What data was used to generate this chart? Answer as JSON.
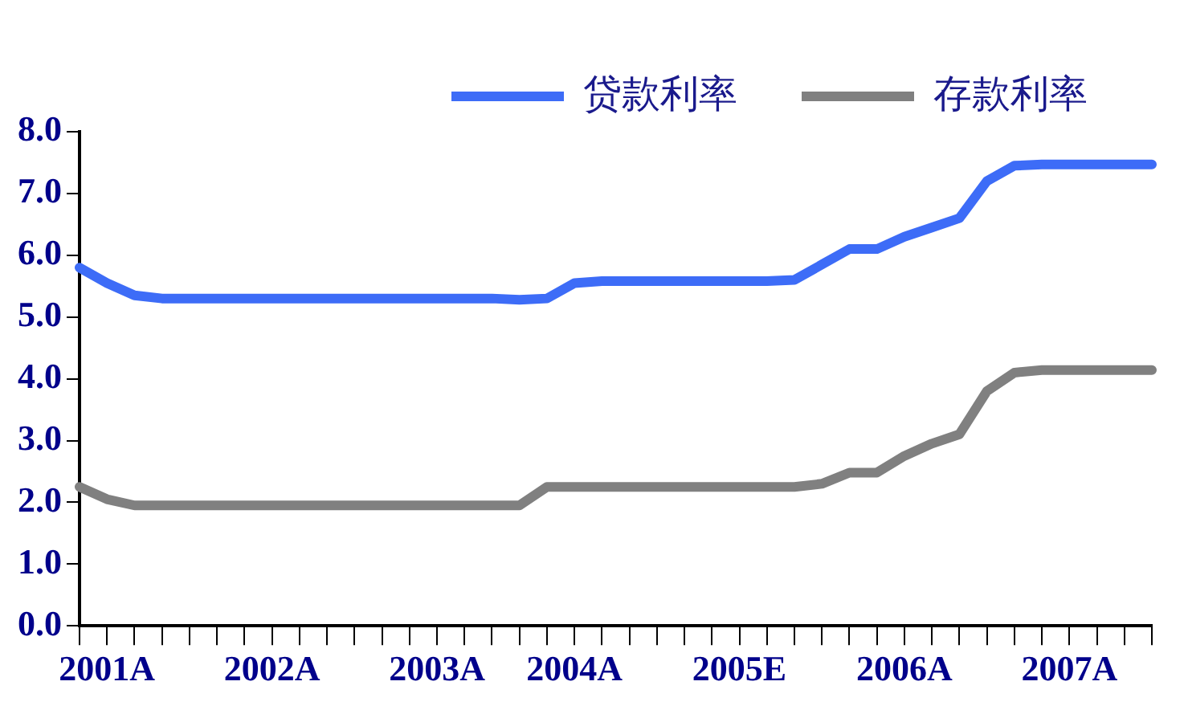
{
  "chart_data": {
    "type": "line",
    "categories": [
      null,
      "2001A",
      null,
      null,
      null,
      null,
      null,
      "2002A",
      null,
      null,
      null,
      null,
      null,
      "2003A",
      null,
      null,
      null,
      null,
      "2004A",
      null,
      null,
      null,
      null,
      null,
      "2005E",
      null,
      null,
      null,
      null,
      null,
      "2006A",
      null,
      null,
      null,
      null,
      null,
      "2007A",
      null,
      null,
      null
    ],
    "series": [
      {
        "name": "贷款利率",
        "color": "#3d6cf7",
        "values": [
          5.8,
          5.55,
          5.35,
          5.3,
          5.3,
          5.3,
          5.3,
          5.3,
          5.3,
          5.3,
          5.3,
          5.3,
          5.3,
          5.3,
          5.3,
          5.3,
          5.28,
          5.3,
          5.55,
          5.58,
          5.58,
          5.58,
          5.58,
          5.58,
          5.58,
          5.58,
          5.6,
          5.85,
          6.1,
          6.1,
          6.3,
          6.45,
          6.6,
          7.2,
          7.45,
          7.47,
          7.47,
          7.47,
          7.47,
          7.47
        ]
      },
      {
        "name": "存款利率",
        "color": "#808080",
        "values": [
          2.25,
          2.05,
          1.95,
          1.95,
          1.95,
          1.95,
          1.95,
          1.95,
          1.95,
          1.95,
          1.95,
          1.95,
          1.95,
          1.95,
          1.95,
          1.95,
          1.95,
          2.25,
          2.25,
          2.25,
          2.25,
          2.25,
          2.25,
          2.25,
          2.25,
          2.25,
          2.25,
          2.3,
          2.48,
          2.48,
          2.75,
          2.95,
          3.1,
          3.8,
          4.1,
          4.14,
          4.14,
          4.14,
          4.14,
          4.14
        ]
      }
    ],
    "ylim": [
      0,
      8
    ],
    "yticks": [
      {
        "value": 0,
        "label": "0.0"
      },
      {
        "value": 1,
        "label": "1.0"
      },
      {
        "value": 2,
        "label": "2.0"
      },
      {
        "value": 3,
        "label": "3.0"
      },
      {
        "value": 4,
        "label": "4.0"
      },
      {
        "value": 5,
        "label": "5.0"
      },
      {
        "value": 6,
        "label": "6.0"
      },
      {
        "value": 7,
        "label": "7.0"
      },
      {
        "value": 8,
        "label": "8.0"
      }
    ],
    "grid": false,
    "legend": "top right",
    "marker": "none",
    "line_style": "solid"
  }
}
